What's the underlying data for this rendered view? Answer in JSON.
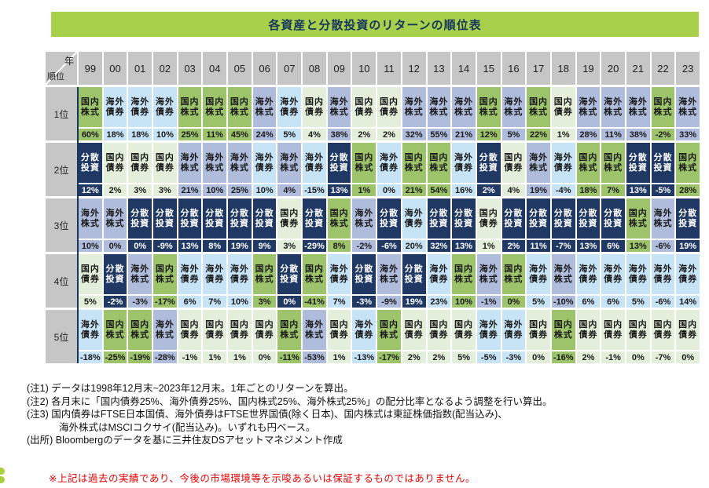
{
  "title": "各資産と分散投資のリターンの順位表",
  "table": {
    "corner": {
      "top_right": "年",
      "bottom_left": "順位"
    }
  },
  "asset_colors": {
    "国内株式": "#9dc36b",
    "海外株式": "#afbcdc",
    "国内債券": "#e3efda",
    "海外債券": "#c7e3f6",
    "分散投資": "#1f3864"
  },
  "chart_data": {
    "type": "table",
    "years": [
      "99",
      "00",
      "01",
      "02",
      "03",
      "04",
      "05",
      "06",
      "07",
      "08",
      "09",
      "10",
      "11",
      "12",
      "13",
      "14",
      "15",
      "16",
      "17",
      "18",
      "19",
      "20",
      "21",
      "22",
      "23"
    ],
    "rows": [
      {
        "rank": "1位",
        "cells": [
          {
            "asset": "国内株式",
            "value": "60%"
          },
          {
            "asset": "海外債券",
            "value": "18%"
          },
          {
            "asset": "海外債券",
            "value": "18%"
          },
          {
            "asset": "海外債券",
            "value": "10%"
          },
          {
            "asset": "国内株式",
            "value": "25%"
          },
          {
            "asset": "国内株式",
            "value": "11%"
          },
          {
            "asset": "国内株式",
            "value": "45%"
          },
          {
            "asset": "海外株式",
            "value": "24%"
          },
          {
            "asset": "海外債券",
            "value": "5%"
          },
          {
            "asset": "国内債券",
            "value": "4%"
          },
          {
            "asset": "海外株式",
            "value": "38%"
          },
          {
            "asset": "国内債券",
            "value": "2%"
          },
          {
            "asset": "国内債券",
            "value": "2%"
          },
          {
            "asset": "海外株式",
            "value": "32%"
          },
          {
            "asset": "海外株式",
            "value": "55%"
          },
          {
            "asset": "海外株式",
            "value": "21%"
          },
          {
            "asset": "国内株式",
            "value": "12%"
          },
          {
            "asset": "海外株式",
            "value": "5%"
          },
          {
            "asset": "国内株式",
            "value": "22%"
          },
          {
            "asset": "国内債券",
            "value": "1%"
          },
          {
            "asset": "海外株式",
            "value": "28%"
          },
          {
            "asset": "海外株式",
            "value": "11%"
          },
          {
            "asset": "海外株式",
            "value": "38%"
          },
          {
            "asset": "国内株式",
            "value": "-2%"
          },
          {
            "asset": "海外株式",
            "value": "33%"
          }
        ]
      },
      {
        "rank": "2位",
        "cells": [
          {
            "asset": "分散投資",
            "value": "12%"
          },
          {
            "asset": "国内債券",
            "value": "2%"
          },
          {
            "asset": "国内債券",
            "value": "3%"
          },
          {
            "asset": "国内債券",
            "value": "3%"
          },
          {
            "asset": "海外株式",
            "value": "21%"
          },
          {
            "asset": "海外株式",
            "value": "10%"
          },
          {
            "asset": "海外株式",
            "value": "25%"
          },
          {
            "asset": "海外債券",
            "value": "10%"
          },
          {
            "asset": "海外株式",
            "value": "4%"
          },
          {
            "asset": "海外債券",
            "value": "-15%"
          },
          {
            "asset": "分散投資",
            "value": "13%"
          },
          {
            "asset": "国内株式",
            "value": "1%"
          },
          {
            "asset": "海外債券",
            "value": "0%"
          },
          {
            "asset": "国内株式",
            "value": "21%"
          },
          {
            "asset": "国内株式",
            "value": "54%"
          },
          {
            "asset": "海外債券",
            "value": "16%"
          },
          {
            "asset": "分散投資",
            "value": "2%"
          },
          {
            "asset": "国内債券",
            "value": "4%"
          },
          {
            "asset": "海外株式",
            "value": "19%"
          },
          {
            "asset": "海外債券",
            "value": "-4%"
          },
          {
            "asset": "国内株式",
            "value": "18%"
          },
          {
            "asset": "国内株式",
            "value": "7%"
          },
          {
            "asset": "分散投資",
            "value": "13%"
          },
          {
            "asset": "分散投資",
            "value": "-5%"
          },
          {
            "asset": "国内株式",
            "value": "28%"
          }
        ]
      },
      {
        "rank": "3位",
        "cells": [
          {
            "asset": "海外株式",
            "value": "10%"
          },
          {
            "asset": "海外株式",
            "value": "0%"
          },
          {
            "asset": "分散投資",
            "value": "0%"
          },
          {
            "asset": "分散投資",
            "value": "-9%"
          },
          {
            "asset": "分散投資",
            "value": "13%"
          },
          {
            "asset": "分散投資",
            "value": "8%"
          },
          {
            "asset": "分散投資",
            "value": "19%"
          },
          {
            "asset": "分散投資",
            "value": "9%"
          },
          {
            "asset": "国内債券",
            "value": "3%"
          },
          {
            "asset": "分散投資",
            "value": "-29%"
          },
          {
            "asset": "国内株式",
            "value": "8%"
          },
          {
            "asset": "海外株式",
            "value": "-2%"
          },
          {
            "asset": "分散投資",
            "value": "-6%"
          },
          {
            "asset": "海外債券",
            "value": "20%"
          },
          {
            "asset": "分散投資",
            "value": "32%"
          },
          {
            "asset": "分散投資",
            "value": "13%"
          },
          {
            "asset": "国内債券",
            "value": "1%"
          },
          {
            "asset": "分散投資",
            "value": "2%"
          },
          {
            "asset": "分散投資",
            "value": "11%"
          },
          {
            "asset": "分散投資",
            "value": "-7%"
          },
          {
            "asset": "分散投資",
            "value": "13%"
          },
          {
            "asset": "分散投資",
            "value": "6%"
          },
          {
            "asset": "国内株式",
            "value": "13%"
          },
          {
            "asset": "海外株式",
            "value": "-6%"
          },
          {
            "asset": "分散投資",
            "value": "19%"
          }
        ]
      },
      {
        "rank": "4位",
        "cells": [
          {
            "asset": "国内債券",
            "value": "5%"
          },
          {
            "asset": "分散投資",
            "value": "-2%"
          },
          {
            "asset": "海外株式",
            "value": "-3%"
          },
          {
            "asset": "国内株式",
            "value": "-17%"
          },
          {
            "asset": "海外債券",
            "value": "6%"
          },
          {
            "asset": "海外債券",
            "value": "7%"
          },
          {
            "asset": "海外債券",
            "value": "10%"
          },
          {
            "asset": "国内株式",
            "value": "3%"
          },
          {
            "asset": "分散投資",
            "value": "0%"
          },
          {
            "asset": "国内株式",
            "value": "-41%"
          },
          {
            "asset": "海外債券",
            "value": "7%"
          },
          {
            "asset": "分散投資",
            "value": "-3%"
          },
          {
            "asset": "海外株式",
            "value": "-9%"
          },
          {
            "asset": "分散投資",
            "value": "19%"
          },
          {
            "asset": "海外債券",
            "value": "23%"
          },
          {
            "asset": "国内株式",
            "value": "10%"
          },
          {
            "asset": "海外株式",
            "value": "-1%"
          },
          {
            "asset": "国内株式",
            "value": "0%"
          },
          {
            "asset": "海外債券",
            "value": "5%"
          },
          {
            "asset": "海外株式",
            "value": "-10%"
          },
          {
            "asset": "海外債券",
            "value": "6%"
          },
          {
            "asset": "海外債券",
            "value": "6%"
          },
          {
            "asset": "海外債券",
            "value": "5%"
          },
          {
            "asset": "海外債券",
            "value": "-6%"
          },
          {
            "asset": "海外債券",
            "value": "14%"
          }
        ]
      },
      {
        "rank": "5位",
        "cells": [
          {
            "asset": "海外債券",
            "value": "-18%"
          },
          {
            "asset": "国内株式",
            "value": "-25%"
          },
          {
            "asset": "国内株式",
            "value": "-19%"
          },
          {
            "asset": "海外株式",
            "value": "-28%"
          },
          {
            "asset": "国内債券",
            "value": "-1%"
          },
          {
            "asset": "国内債券",
            "value": "1%"
          },
          {
            "asset": "国内債券",
            "value": "1%"
          },
          {
            "asset": "国内債券",
            "value": "0%"
          },
          {
            "asset": "国内株式",
            "value": "-11%"
          },
          {
            "asset": "海外株式",
            "value": "-53%"
          },
          {
            "asset": "国内債券",
            "value": "1%"
          },
          {
            "asset": "海外債券",
            "value": "-13%"
          },
          {
            "asset": "国内株式",
            "value": "-17%"
          },
          {
            "asset": "国内債券",
            "value": "2%"
          },
          {
            "asset": "国内債券",
            "value": "2%"
          },
          {
            "asset": "国内債券",
            "value": "5%"
          },
          {
            "asset": "海外債券",
            "value": "-5%"
          },
          {
            "asset": "海外債券",
            "value": "-3%"
          },
          {
            "asset": "国内債券",
            "value": "0%"
          },
          {
            "asset": "国内株式",
            "value": "-16%"
          },
          {
            "asset": "国内債券",
            "value": "2%"
          },
          {
            "asset": "国内債券",
            "value": "-1%"
          },
          {
            "asset": "国内債券",
            "value": "0%"
          },
          {
            "asset": "国内債券",
            "value": "-7%"
          },
          {
            "asset": "国内債券",
            "value": "0%"
          }
        ]
      }
    ]
  },
  "notes": [
    "(注1) データは1998年12月末~2023年12月末。1年ごとのリターンを算出。",
    "(注2) 各月末に「国内債券25%、海外債券25%、国内株式25%、海外株式25%」の配分比率となるよう調整を行い算出。",
    "(注3) 国内債券はFTSE日本国債、海外債券はFTSE世界国債(除く日本)、国内株式は東証株価指数(配当込み)、",
    "　　　 海外株式はMSCIコクサイ(配当込み)。いずれも円ベース。",
    "(出所) Bloombergのデータを基に三井住友DSアセットマネジメント作成"
  ],
  "disclaimer": "※上記は過去の実績であり、今後の市場環境等を示唆あるいは保証するものではありません。"
}
